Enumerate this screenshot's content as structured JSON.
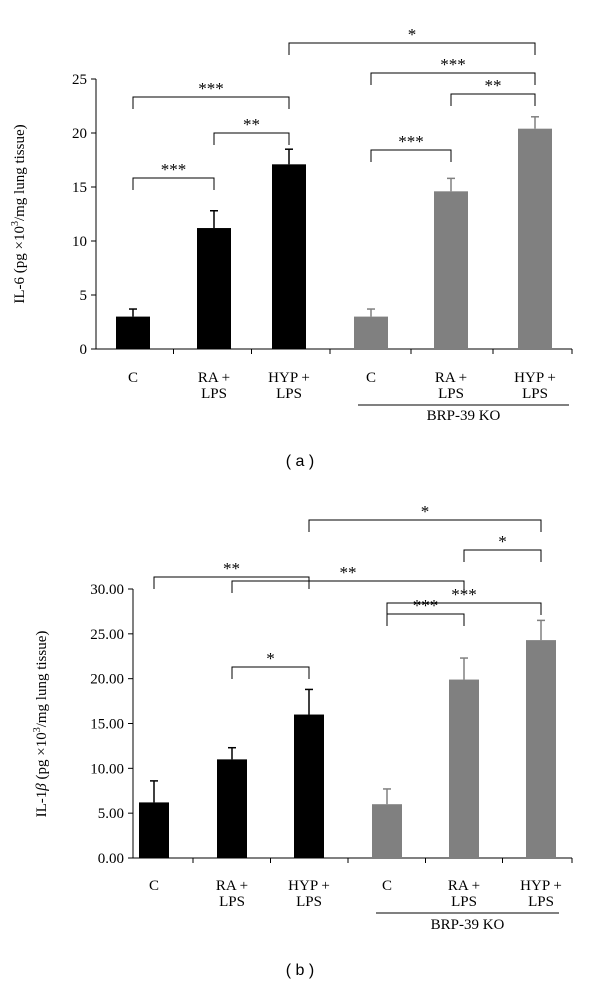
{
  "chart_data": [
    {
      "type": "bar",
      "panel_label": "( a )",
      "ylabel_prefix": "IL-6 (pg ×10",
      "ylabel_sup": "3",
      "ylabel_suffix": "/mg lung tissue)",
      "ylim": [
        0,
        25
      ],
      "yticks": [
        "0",
        "5",
        "10",
        "15",
        "20",
        "25"
      ],
      "categories": [
        [
          "C"
        ],
        [
          "RA +",
          "LPS"
        ],
        [
          "HYP +",
          "LPS"
        ],
        [
          "C"
        ],
        [
          "RA +",
          "LPS"
        ],
        [
          "HYP +",
          "LPS"
        ]
      ],
      "values": [
        3.0,
        11.2,
        17.1,
        3.0,
        14.6,
        20.4
      ],
      "errors": [
        0.7,
        1.6,
        1.4,
        0.7,
        1.2,
        1.1
      ],
      "colors": [
        "#000000",
        "#000000",
        "#000000",
        "#808080",
        "#808080",
        "#808080"
      ],
      "group_label": "BRP-39 KO",
      "significance": [
        {
          "from": 0,
          "to": 1,
          "label": "***"
        },
        {
          "from": 1,
          "to": 2,
          "label": "**"
        },
        {
          "from": 0,
          "to": 2,
          "label": "***"
        },
        {
          "from": 3,
          "to": 4,
          "label": "***"
        },
        {
          "from": 4,
          "to": 5,
          "label": "**"
        },
        {
          "from": 3,
          "to": 5,
          "label": "***"
        },
        {
          "from": 2,
          "to": 5,
          "label": "*"
        }
      ]
    },
    {
      "type": "bar",
      "panel_label": "( b )",
      "ylabel_prefix": "IL-1",
      "ylabel_beta": "β",
      "ylabel_mid": " (pg ×10",
      "ylabel_sup": "3",
      "ylabel_suffix": "/mg lung tissue)",
      "ylim": [
        0,
        30
      ],
      "yticks": [
        "0.00",
        "5.00",
        "10.00",
        "15.00",
        "20.00",
        "25.00",
        "30.00"
      ],
      "categories": [
        [
          "C"
        ],
        [
          "RA +",
          "LPS"
        ],
        [
          "HYP +",
          "LPS"
        ],
        [
          "C"
        ],
        [
          "RA +",
          "LPS"
        ],
        [
          "HYP +",
          "LPS"
        ]
      ],
      "values": [
        6.2,
        11.0,
        16.0,
        6.0,
        19.9,
        24.3
      ],
      "errors": [
        2.4,
        1.3,
        2.8,
        1.7,
        2.4,
        2.2
      ],
      "colors": [
        "#000000",
        "#000000",
        "#000000",
        "#808080",
        "#808080",
        "#808080"
      ],
      "group_label": "BRP-39 KO",
      "significance": [
        {
          "from": 1,
          "to": 2,
          "label": "*"
        },
        {
          "from": 3,
          "to": 4,
          "label": "***"
        },
        {
          "from": 3,
          "to": 5,
          "label": "***"
        },
        {
          "from": 1,
          "to": 4,
          "label": "**"
        },
        {
          "from": 0,
          "to": 2,
          "label": "**"
        },
        {
          "from": 4,
          "to": 5,
          "label": "*"
        },
        {
          "from": 2,
          "to": 5,
          "label": "*"
        }
      ]
    }
  ]
}
